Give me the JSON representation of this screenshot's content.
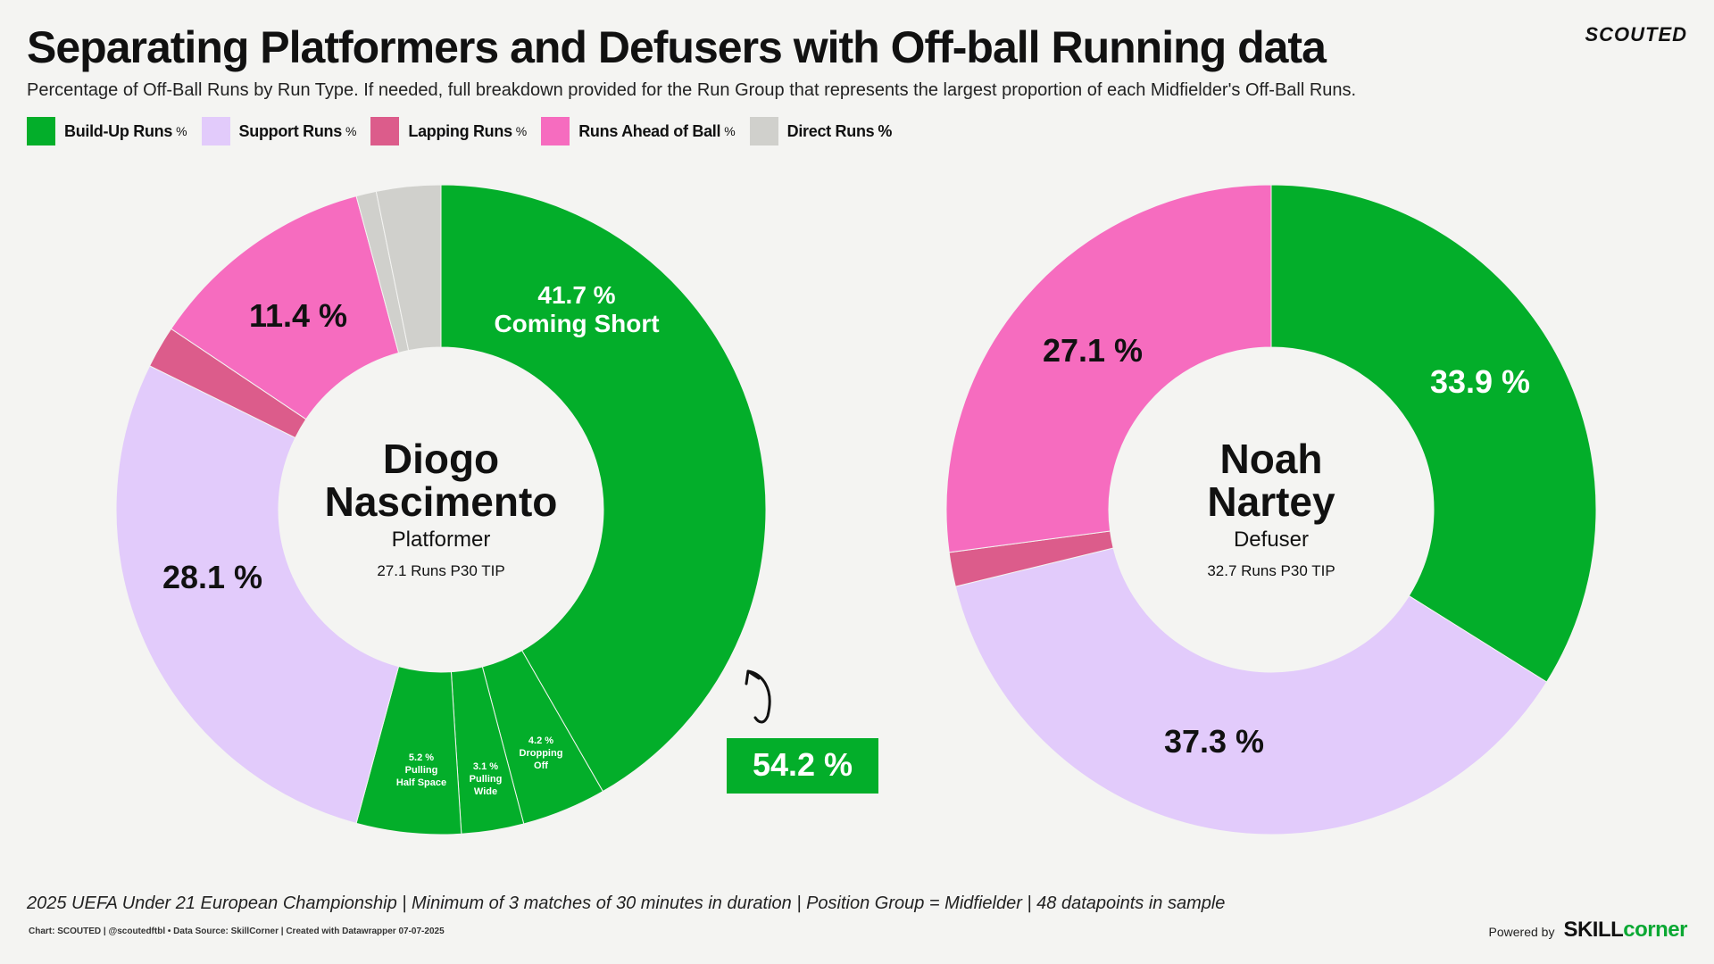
{
  "header": {
    "title": "Separating Platformers and Defusers with Off-ball Running data",
    "subtitle": "Percentage of Off-Ball Runs by Run Type. If needed, full breakdown provided for the Run Group that represents the largest proportion of each Midfielder's Off-Ball Runs.",
    "brand": "SCOUTED"
  },
  "legend": [
    {
      "label": "Build-Up Runs",
      "unit": "%",
      "color": "#03ae2a"
    },
    {
      "label": "Support Runs",
      "unit": "%",
      "color": "#e2cbfb"
    },
    {
      "label": "Lapping Runs",
      "unit": "%",
      "color": "#dc5c8b"
    },
    {
      "label": "Runs Ahead of Ball",
      "unit": "%",
      "color": "#f66cbf"
    },
    {
      "label": "Direct Runs",
      "unit": "%",
      "color": "#d0d0cc"
    }
  ],
  "chart_data": [
    {
      "type": "pie",
      "style": "donut",
      "player": {
        "first": "Diogo",
        "last": "Nascimento",
        "role": "Platformer",
        "runs": "27.1 Runs P30 TIP"
      },
      "slices": [
        {
          "label": "Coming Short",
          "group": "Build-Up Runs",
          "value": 41.7,
          "color": "#03ae2a",
          "text": "41.7 %"
        },
        {
          "label": "Dropping Off",
          "group": "Build-Up Runs",
          "value": 4.2,
          "color": "#03ae2a",
          "text": "4.2 %"
        },
        {
          "label": "Pulling Wide",
          "group": "Build-Up Runs",
          "value": 3.1,
          "color": "#03ae2a",
          "text": "3.1 %"
        },
        {
          "label": "Pulling Half Space",
          "group": "Build-Up Runs",
          "value": 5.2,
          "color": "#03ae2a",
          "text": "5.2 %"
        },
        {
          "label": "Support Runs",
          "value": 28.1,
          "color": "#e2cbfb",
          "text": "28.1 %"
        },
        {
          "label": "Lapping Runs",
          "value": 2.1,
          "color": "#dc5c8b",
          "text": ""
        },
        {
          "label": "Runs Ahead of Ball",
          "value": 11.4,
          "color": "#f66cbf",
          "text": "11.4 %"
        },
        {
          "label": "Direct Runs",
          "value": 1.0,
          "color": "#d0d0cc",
          "text": ""
        },
        {
          "label": "Direct Runs",
          "value": 3.2,
          "color": "#d0d0cc",
          "text": ""
        }
      ],
      "sub_labels": [
        {
          "value": "41.7 %",
          "name": "Coming Short"
        },
        {
          "value": "4.2 %",
          "name": "Dropping Off"
        },
        {
          "value": "3.1 %",
          "name": "Pulling Wide"
        },
        {
          "value": "5.2 %",
          "name": "Pulling Half Space"
        }
      ],
      "group_total": "54.2 %"
    },
    {
      "type": "pie",
      "style": "donut",
      "player": {
        "first": "Noah",
        "last": "Nartey",
        "role": "Defuser",
        "runs": "32.7 Runs P30 TIP"
      },
      "slices": [
        {
          "label": "Build-Up Runs",
          "value": 33.9,
          "color": "#03ae2a",
          "text": "33.9 %"
        },
        {
          "label": "Support Runs",
          "value": 37.3,
          "color": "#e2cbfb",
          "text": "37.3 %"
        },
        {
          "label": "Lapping Runs",
          "value": 1.7,
          "color": "#dc5c8b",
          "text": ""
        },
        {
          "label": "Runs Ahead of Ball",
          "value": 27.1,
          "color": "#f66cbf",
          "text": "27.1 %"
        }
      ]
    }
  ],
  "footer": {
    "note": "2025 UEFA Under 21 European Championship | Minimum of 3 matches of 30 minutes in duration | Position Group = Midfielder | 48 datapoints in sample",
    "credits": "Chart: SCOUTED | @scoutedftbl • Data Source: SkillCorner | Created with Datawrapper 07-07-2025",
    "powered_label": "Powered by",
    "powered_brand_1": "SKILL",
    "powered_brand_2": "corner"
  }
}
